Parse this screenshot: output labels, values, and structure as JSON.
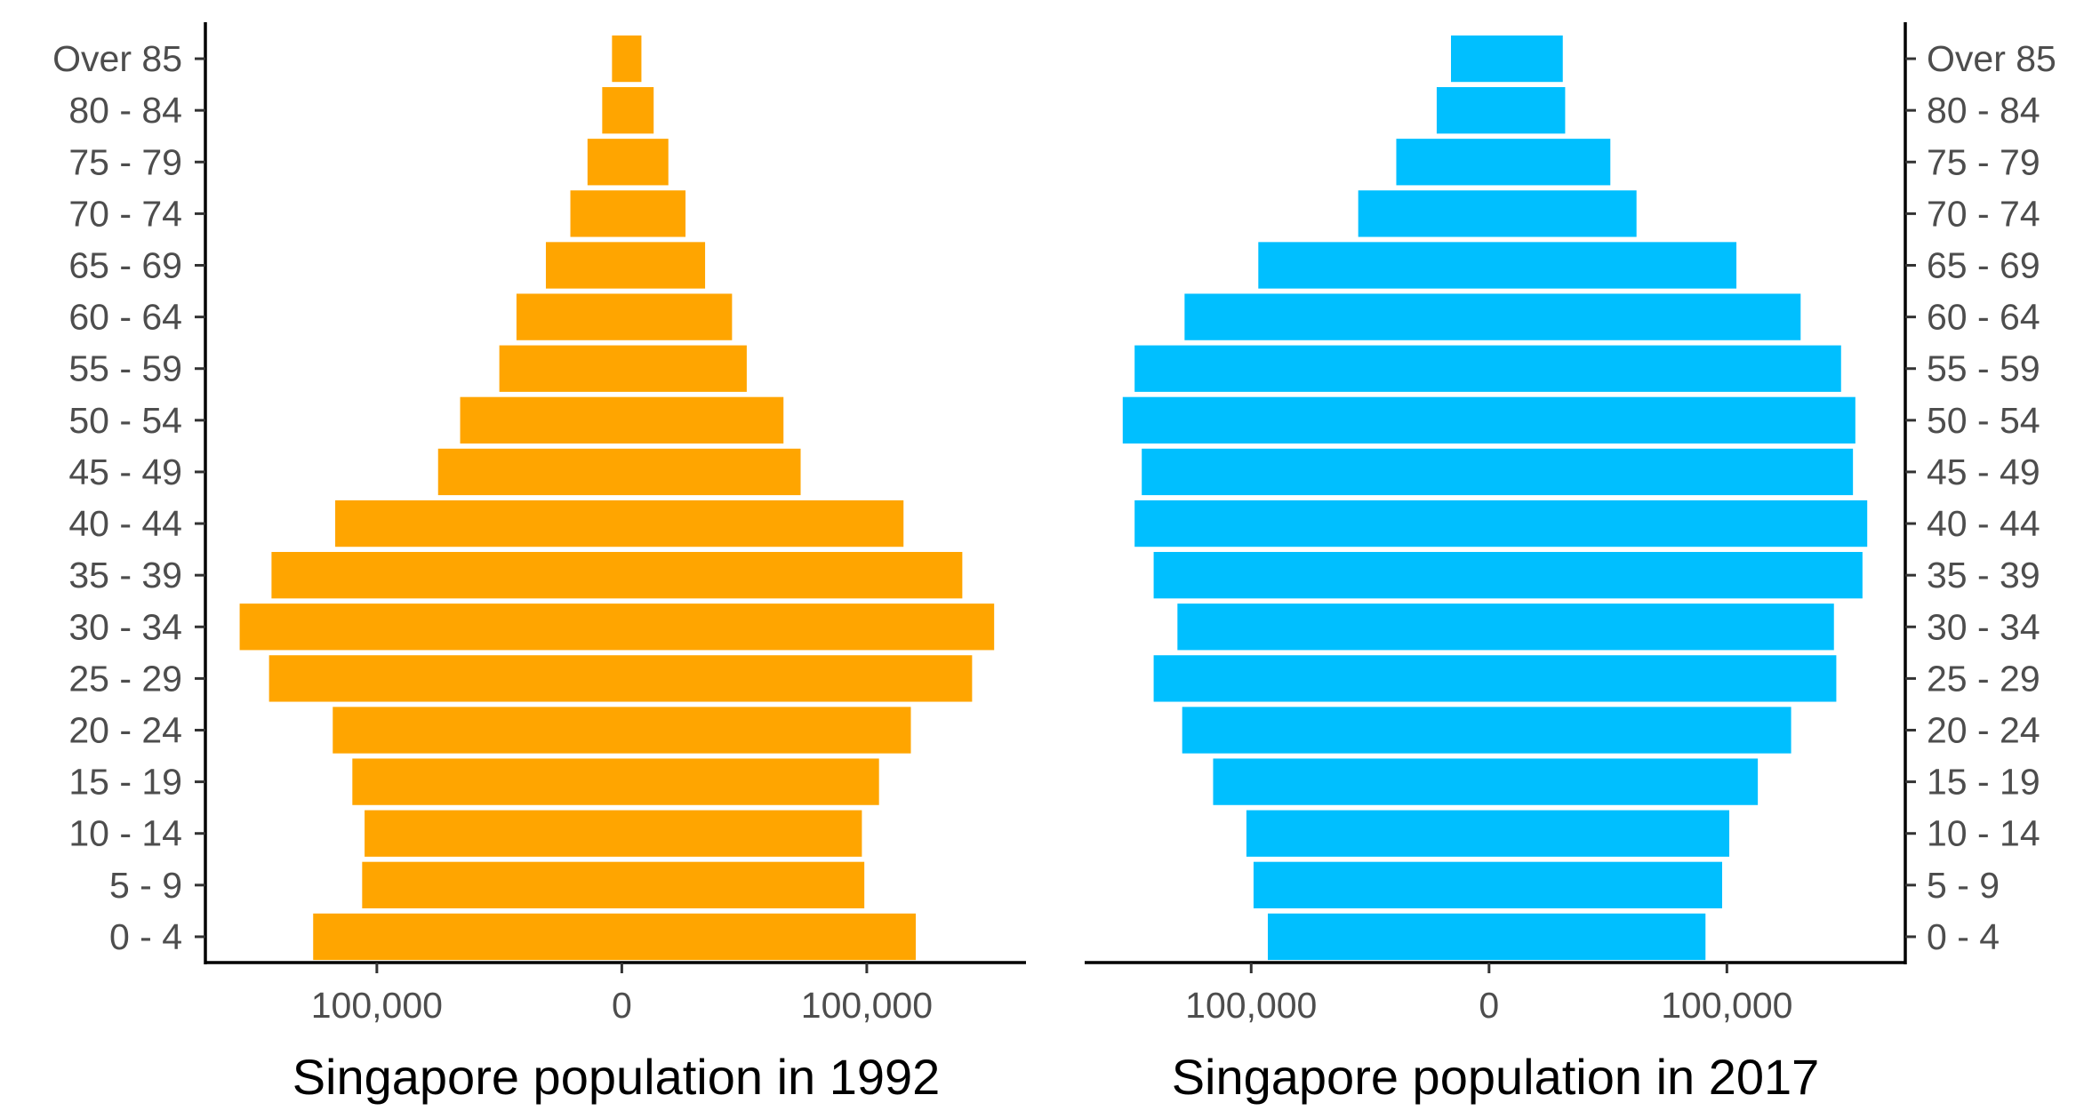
{
  "chart_data": [
    {
      "type": "bar",
      "orientation": "horizontal",
      "subtype": "population-pyramid",
      "title": "",
      "xlabel": "Singapore population in 1992",
      "ylabel": "",
      "color": "#FFA500",
      "y_axis_side": "left",
      "categories": [
        "0 - 4",
        "5 - 9",
        "10 - 14",
        "15 - 19",
        "20 - 24",
        "25 - 29",
        "30 - 34",
        "35 - 39",
        "40 - 44",
        "45 - 49",
        "50 - 54",
        "55 - 59",
        "60 - 64",
        "65 - 69",
        "70 - 74",
        "75 - 79",
        "80 - 84",
        "Over 85"
      ],
      "series": [
        {
          "side": "left",
          "values": [
            126000,
            106000,
            105000,
            110000,
            118000,
            144000,
            156000,
            143000,
            117000,
            75000,
            66000,
            50000,
            43000,
            31000,
            21000,
            14000,
            8000,
            4000
          ]
        },
        {
          "side": "right",
          "values": [
            120000,
            99000,
            98000,
            105000,
            118000,
            143000,
            152000,
            139000,
            115000,
            73000,
            66000,
            51000,
            45000,
            34000,
            26000,
            19000,
            13000,
            8000
          ]
        }
      ],
      "xlim": [
        -170000,
        165000
      ],
      "xticks": [
        -100000,
        0,
        100000
      ],
      "xtick_labels": [
        "100,000",
        "0",
        "100,000"
      ]
    },
    {
      "type": "bar",
      "orientation": "horizontal",
      "subtype": "population-pyramid",
      "title": "",
      "xlabel": "Singapore population in 2017",
      "ylabel": "",
      "color": "#00BFFF",
      "y_axis_side": "right",
      "categories": [
        "0 - 4",
        "5 - 9",
        "10 - 14",
        "15 - 19",
        "20 - 24",
        "25 - 29",
        "30 - 34",
        "35 - 39",
        "40 - 44",
        "45 - 49",
        "50 - 54",
        "55 - 59",
        "60 - 64",
        "65 - 69",
        "70 - 74",
        "75 - 79",
        "80 - 84",
        "Over 85"
      ],
      "series": [
        {
          "side": "left",
          "values": [
            93000,
            99000,
            102000,
            116000,
            129000,
            141000,
            131000,
            141000,
            149000,
            146000,
            154000,
            149000,
            128000,
            97000,
            55000,
            39000,
            22000,
            16000
          ]
        },
        {
          "side": "right",
          "values": [
            91000,
            98000,
            101000,
            113000,
            127000,
            146000,
            145000,
            157000,
            159000,
            153000,
            154000,
            148000,
            131000,
            104000,
            62000,
            51000,
            32000,
            31000
          ]
        }
      ],
      "xlim": [
        -170000,
        175000
      ],
      "xticks": [
        -100000,
        0,
        100000
      ],
      "xtick_labels": [
        "100,000",
        "0",
        "100,000"
      ]
    }
  ]
}
